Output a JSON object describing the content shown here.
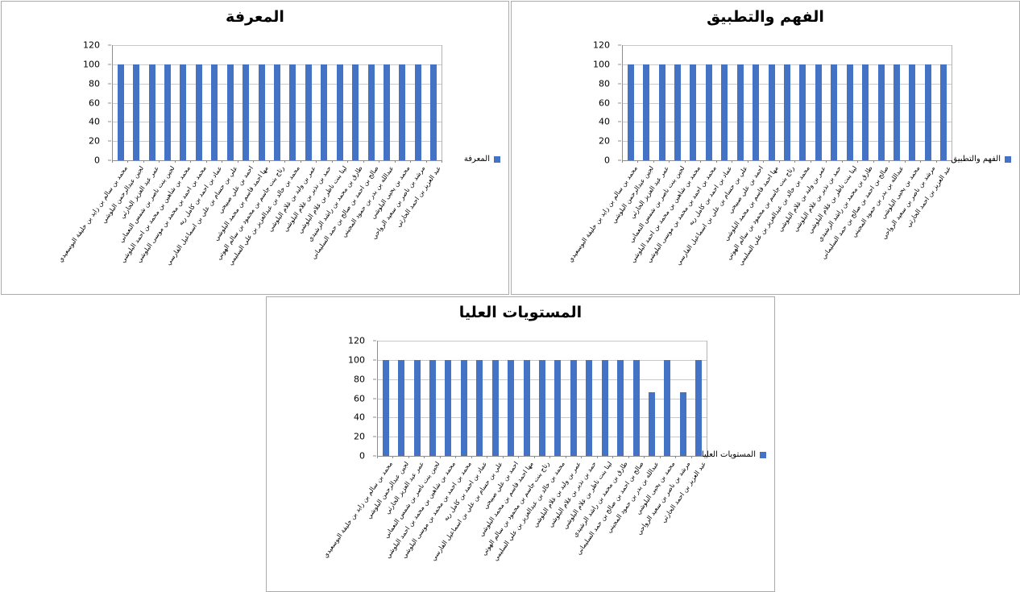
{
  "colors": {
    "bar": "#4472C4",
    "grid": "#C9C9C9",
    "axis": "#8C8C8C",
    "panel_border": "#ABABAB",
    "background": "#FFFFFF"
  },
  "chart_data": [
    {
      "type": "bar",
      "title": "المعرفة",
      "legend": "المعرفة",
      "legend_position": "right",
      "grid": true,
      "ylim": [
        0,
        120
      ],
      "yticks": [
        0,
        20,
        40,
        60,
        80,
        100,
        120
      ],
      "bar_color": "#4472C4",
      "categories": [
        "محمد بن سالم بن زايد بن خليفة البوسعيدي",
        "لجين عبدالرحمن البلوشي",
        "عمر عبد العزيز الحارثي",
        "لجين بنت ناصر بن شمس النعماني",
        "محمد بن شاهين بن محمد بن احمد البلوشي",
        "محمد بن احمد بن محمد بن موسى البلوشي",
        "عماد بن احمد بن كامل ريه",
        "علي بن حسام بن علي بن اسماعيل الفارسي",
        "احمد بن علي صبيحي",
        "مها احمد قاسم بن محمد البلوشي",
        "رتاج بنت جاسم بن محمود بن سالم الهوتي",
        "محمد بن خالد بن عبدالعزيز بن علي السليمي",
        "عمر بن وليد بن غلام البلوشي",
        "حمد بن نذير بن غلام البلوشي",
        "لينا بنت ناظر بن غلام البلوشي",
        "طارق بن محمد بن راشد الرشيدي",
        "صالح بن احمد بن صالح بن حمد السليماني",
        "عبدالله بن بدر بن حمود المجيني",
        "محمد بن يحيى البلوشي",
        "مرشد بن ناصر بن سعيد الرواحي",
        "عبد العزيز بن احمد الحارثي"
      ],
      "values": [
        100,
        100,
        100,
        100,
        100,
        100,
        100,
        100,
        100,
        100,
        100,
        100,
        100,
        100,
        100,
        100,
        100,
        100,
        100,
        100,
        100
      ]
    },
    {
      "type": "bar",
      "title": "الفهم والتطبيق",
      "legend": "الفهم والتطبيق",
      "legend_position": "right",
      "grid": true,
      "ylim": [
        0,
        120
      ],
      "yticks": [
        0,
        20,
        40,
        60,
        80,
        100,
        120
      ],
      "bar_color": "#4472C4",
      "categories": [
        "محمد بن سالم بن زايد بن خليفة البوسعيدي",
        "لجين عبدالرحمن البلوشي",
        "عمر عبد العزيز الحارثي",
        "لجين بنت ناصر بن شمس النعماني",
        "محمد بن شاهين بن محمد بن احمد البلوشي",
        "محمد بن احمد بن محمد بن موسى البلوشي",
        "عماد بن احمد بن كامل ريه",
        "علي بن حسام بن علي بن اسماعيل الفارسي",
        "احمد بن علي صبيحي",
        "مها احمد قاسم بن محمد البلوشي",
        "رتاج بنت جاسم بن محمود بن سالم الهوتي",
        "محمد بن خالد بن عبدالعزيز بن علي السليمي",
        "عمر بن وليد بن غلام البلوشي",
        "حمد بن نذير بن غلام البلوشي",
        "لينا بنت ناظر بن غلام البلوشي",
        "طارق بن محمد بن راشد الرشيدي",
        "صالح بن احمد بن صالح بن حمد السليماني",
        "عبدالله بن بدر بن حمود المجيني",
        "محمد بن يحيى البلوشي",
        "مرشد بن ناصر بن سعيد الرواحي",
        "عبد العزيز بن احمد الحارثي"
      ],
      "values": [
        100,
        100,
        100,
        100,
        100,
        100,
        100,
        100,
        100,
        100,
        100,
        100,
        100,
        100,
        100,
        100,
        100,
        100,
        100,
        100,
        100
      ]
    },
    {
      "type": "bar",
      "title": "المستويات العليا",
      "legend": "المستويات العليا",
      "legend_position": "right",
      "grid": true,
      "ylim": [
        0,
        120
      ],
      "yticks": [
        0,
        20,
        40,
        60,
        80,
        100,
        120
      ],
      "bar_color": "#4472C4",
      "categories": [
        "محمد بن سالم بن زايد بن خليفة البوسعيدي",
        "لجين عبدالرحمن البلوشي",
        "عمر عبد العزيز الحارثي",
        "لجين بنت ناصر بن شمس النعماني",
        "محمد بن شاهين بن محمد بن احمد البلوشي",
        "محمد بن احمد بن محمد بن موسى البلوشي",
        "عماد بن احمد بن كامل ريه",
        "علي بن حسام بن علي بن اسماعيل الفارسي",
        "احمد بن علي صبيحي",
        "مها احمد قاسم بن محمد البلوشي",
        "رتاج بنت جاسم بن محمود بن سالم الهوتي",
        "محمد بن خالد بن عبدالعزيز بن علي السليمي",
        "عمر بن وليد بن غلام البلوشي",
        "حمد بن نذير بن غلام البلوشي",
        "لينا بنت ناظر بن غلام البلوشي",
        "طارق بن محمد بن راشد الرشيدي",
        "صالح بن احمد بن صالح بن حمد السليماني",
        "عبدالله بن بدر بن حمود المجيني",
        "محمد بن يحيى البلوشي",
        "مرشد بن ناصر بن سعيد الرواحي",
        "عبد العزيز بن احمد الحارثي"
      ],
      "values": [
        100,
        100,
        100,
        100,
        100,
        100,
        100,
        100,
        100,
        100,
        100,
        100,
        100,
        100,
        100,
        100,
        100,
        66.7,
        100,
        66.7,
        100
      ]
    }
  ]
}
